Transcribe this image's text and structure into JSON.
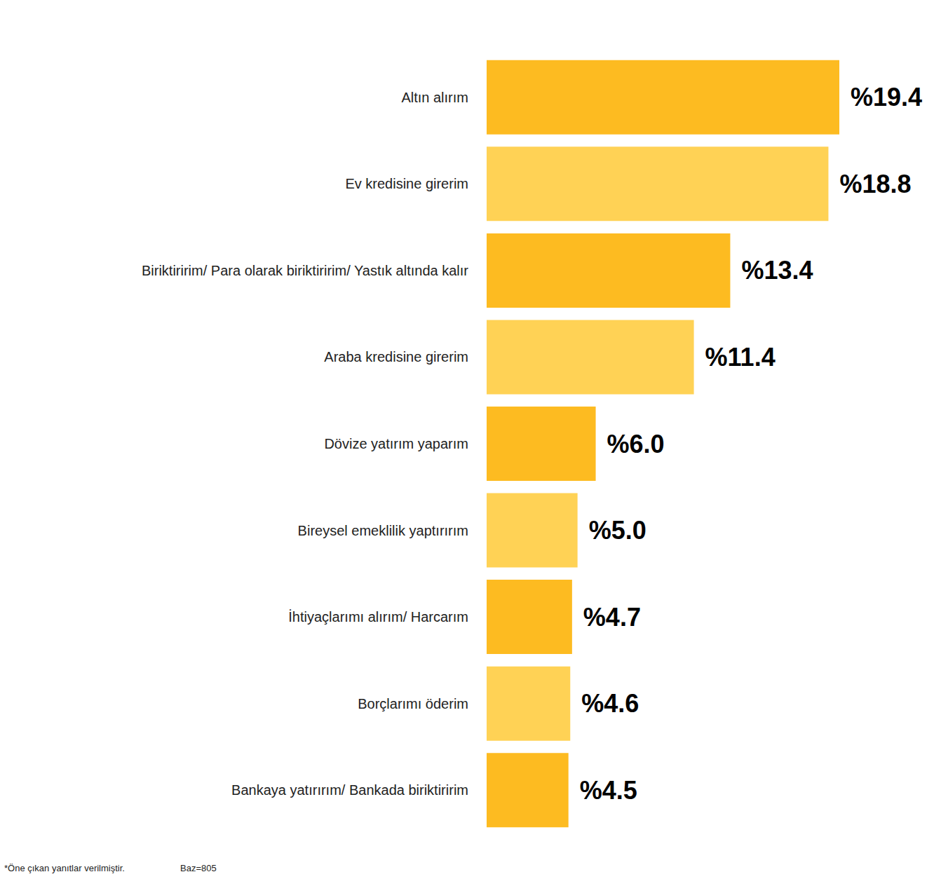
{
  "chart_data": {
    "type": "bar",
    "orientation": "horizontal",
    "categories": [
      "Altın alırım",
      "Ev kredisine girerim",
      "Biriktiririm/ Para olarak biriktiririm/ Yastık altında kalır",
      "Araba kredisine girerim",
      "Dövize yatırım yaparım",
      "Bireysel emeklilik yaptırırım",
      "İhtiyaçlarımı alırım/ Harcarım",
      "Borçlarımı öderim",
      "Bankaya yatırırım/ Bankada biriktiririm"
    ],
    "values": [
      19.4,
      18.8,
      13.4,
      11.4,
      6.0,
      5.0,
      4.7,
      4.6,
      4.5
    ],
    "value_labels": [
      "%19.4",
      "%18.8",
      "%13.4",
      "%11.4",
      "%6.0",
      "%5.0",
      "%4.7",
      "%4.6",
      "%4.5"
    ],
    "colors": [
      "#fdbb21",
      "#ffd255",
      "#fdbb21",
      "#ffd255",
      "#fdbb21",
      "#ffd255",
      "#fdbb21",
      "#ffd255",
      "#fdbb21"
    ],
    "xlim": [
      0,
      19.4
    ],
    "data_labels": true,
    "tick_labels": "y",
    "grid": false,
    "annotations": [
      "*Öne çıkan yanıtlar verilmiştir.",
      "Baz=805"
    ]
  }
}
